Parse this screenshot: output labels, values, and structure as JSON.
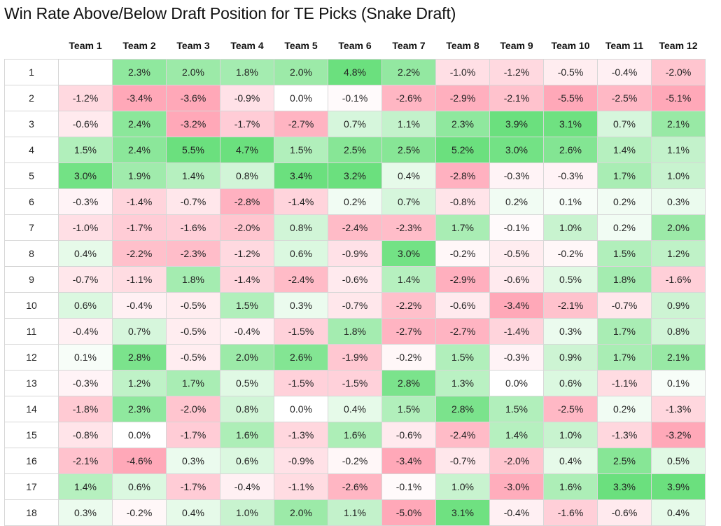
{
  "chart_data": {
    "type": "heatmap",
    "title": "Win Rate Above/Below Draft Position for TE Picks (Snake Draft)",
    "columns": [
      "Team 1",
      "Team 2",
      "Team 3",
      "Team 4",
      "Team 5",
      "Team 6",
      "Team 7",
      "Team 8",
      "Team 9",
      "Team 10",
      "Team 11",
      "Team 12"
    ],
    "rows": [
      "1",
      "2",
      "3",
      "4",
      "5",
      "6",
      "7",
      "8",
      "9",
      "10",
      "11",
      "12",
      "13",
      "14",
      "15",
      "16",
      "17",
      "18"
    ],
    "values": [
      [
        null,
        2.3,
        2.0,
        1.8,
        2.0,
        4.8,
        2.2,
        -1.0,
        -1.2,
        -0.5,
        -0.4,
        -2.0
      ],
      [
        -1.2,
        -3.4,
        -3.6,
        -0.9,
        0.0,
        -0.1,
        -2.6,
        -2.9,
        -2.1,
        -5.5,
        -2.5,
        -5.1
      ],
      [
        -0.6,
        2.4,
        -3.2,
        -1.7,
        -2.7,
        0.7,
        1.1,
        2.3,
        3.9,
        3.1,
        0.7,
        2.1
      ],
      [
        1.5,
        2.4,
        5.5,
        4.7,
        1.5,
        2.5,
        2.5,
        5.2,
        3.0,
        2.6,
        1.4,
        1.1
      ],
      [
        3.0,
        1.9,
        1.4,
        0.8,
        3.4,
        3.2,
        0.4,
        -2.8,
        -0.3,
        -0.3,
        1.7,
        1.0
      ],
      [
        -0.3,
        -1.4,
        -0.7,
        -2.8,
        -1.4,
        0.2,
        0.7,
        -0.8,
        0.2,
        0.1,
        0.2,
        0.3
      ],
      [
        -1.0,
        -1.7,
        -1.6,
        -2.0,
        0.8,
        -2.4,
        -2.3,
        1.7,
        -0.1,
        1.0,
        0.2,
        2.0
      ],
      [
        0.4,
        -2.2,
        -2.3,
        -1.2,
        0.6,
        -0.9,
        3.0,
        -0.2,
        -0.5,
        -0.2,
        1.5,
        1.2
      ],
      [
        -0.7,
        -1.1,
        1.8,
        -1.4,
        -2.4,
        -0.6,
        1.4,
        -2.9,
        -0.6,
        0.5,
        1.8,
        -1.6
      ],
      [
        0.6,
        -0.4,
        -0.5,
        1.5,
        0.3,
        -0.7,
        -2.2,
        -0.6,
        -3.4,
        -2.1,
        -0.7,
        0.9
      ],
      [
        -0.4,
        0.7,
        -0.5,
        -0.4,
        -1.5,
        1.8,
        -2.7,
        -2.7,
        -1.4,
        0.3,
        1.7,
        0.8
      ],
      [
        0.1,
        2.8,
        -0.5,
        2.0,
        2.6,
        -1.9,
        -0.2,
        1.5,
        -0.3,
        0.9,
        1.7,
        2.1
      ],
      [
        -0.3,
        1.2,
        1.7,
        0.5,
        -1.5,
        -1.5,
        2.8,
        1.3,
        0.0,
        0.6,
        -1.1,
        0.1
      ],
      [
        -1.8,
        2.3,
        -2.0,
        0.8,
        0.0,
        0.4,
        1.5,
        2.8,
        1.5,
        -2.5,
        0.2,
        -1.3
      ],
      [
        -0.8,
        0.0,
        -1.7,
        1.6,
        -1.3,
        1.6,
        -0.6,
        -2.4,
        1.4,
        1.0,
        -1.3,
        -3.2
      ],
      [
        -2.1,
        -4.6,
        0.3,
        0.6,
        -0.9,
        -0.2,
        -3.4,
        -0.7,
        -2.0,
        0.4,
        2.5,
        0.5
      ],
      [
        1.4,
        0.6,
        -1.7,
        -0.4,
        -1.1,
        -2.6,
        -0.1,
        1.0,
        -3.0,
        1.6,
        3.3,
        3.9
      ],
      [
        0.3,
        -0.2,
        0.4,
        1.0,
        2.0,
        1.1,
        -5.0,
        3.1,
        -0.4,
        -1.6,
        -0.6,
        0.4
      ]
    ],
    "value_suffix": "%",
    "colors": {
      "positive": "#6be07e",
      "negative": "#ffa8b8",
      "neutral": "#ffffff"
    }
  }
}
